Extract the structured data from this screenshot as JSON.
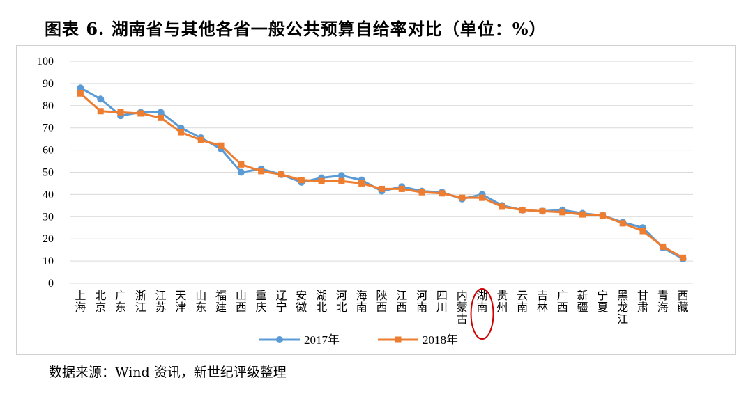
{
  "figure": {
    "title": "图表 6.   湖南省与其他各省一般公共预算自给率对比（单位：%）",
    "source": "数据来源：Wind 资讯，新世纪评级整理"
  },
  "chart_data": {
    "type": "line",
    "title": "",
    "xlabel": "",
    "ylabel": "",
    "ylim": [
      0,
      100
    ],
    "yticks": [
      0,
      10,
      20,
      30,
      40,
      50,
      60,
      70,
      80,
      90,
      100
    ],
    "grid": true,
    "legend_position": "bottom",
    "highlight": {
      "category": "湖南",
      "shape": "red-ellipse",
      "color": "#cc0000"
    },
    "categories": [
      "上海",
      "北京",
      "广东",
      "浙江",
      "江苏",
      "天津",
      "山东",
      "福建",
      "山西",
      "重庆",
      "辽宁",
      "安徽",
      "湖北",
      "河北",
      "海南",
      "陕西",
      "江西",
      "河南",
      "四川",
      "内蒙古",
      "湖南",
      "贵州",
      "云南",
      "吉林",
      "广西",
      "新疆",
      "宁夏",
      "黑龙江",
      "甘肃",
      "青海",
      "西藏"
    ],
    "series": [
      {
        "name": "2017年",
        "color": "#5b9bd5",
        "marker": "circle",
        "values": [
          88,
          83,
          75.5,
          77,
          77,
          70,
          65.5,
          60.5,
          50,
          51.5,
          49,
          45.5,
          47.5,
          48.5,
          46.5,
          41.5,
          43.5,
          41.5,
          41,
          38,
          40,
          35,
          33,
          32.5,
          33,
          31.5,
          30.5,
          27.5,
          25,
          16,
          11
        ]
      },
      {
        "name": "2018年",
        "color": "#ed7d31",
        "marker": "square",
        "values": [
          85.5,
          77.5,
          77,
          76.5,
          74.5,
          68,
          64.5,
          62,
          53.5,
          50.5,
          49,
          46.5,
          46,
          46,
          45,
          42.5,
          42.5,
          41,
          40.5,
          38.5,
          38.5,
          34.5,
          33,
          32.5,
          32,
          31,
          30.5,
          27,
          23.5,
          16.5,
          11.5
        ]
      }
    ]
  }
}
